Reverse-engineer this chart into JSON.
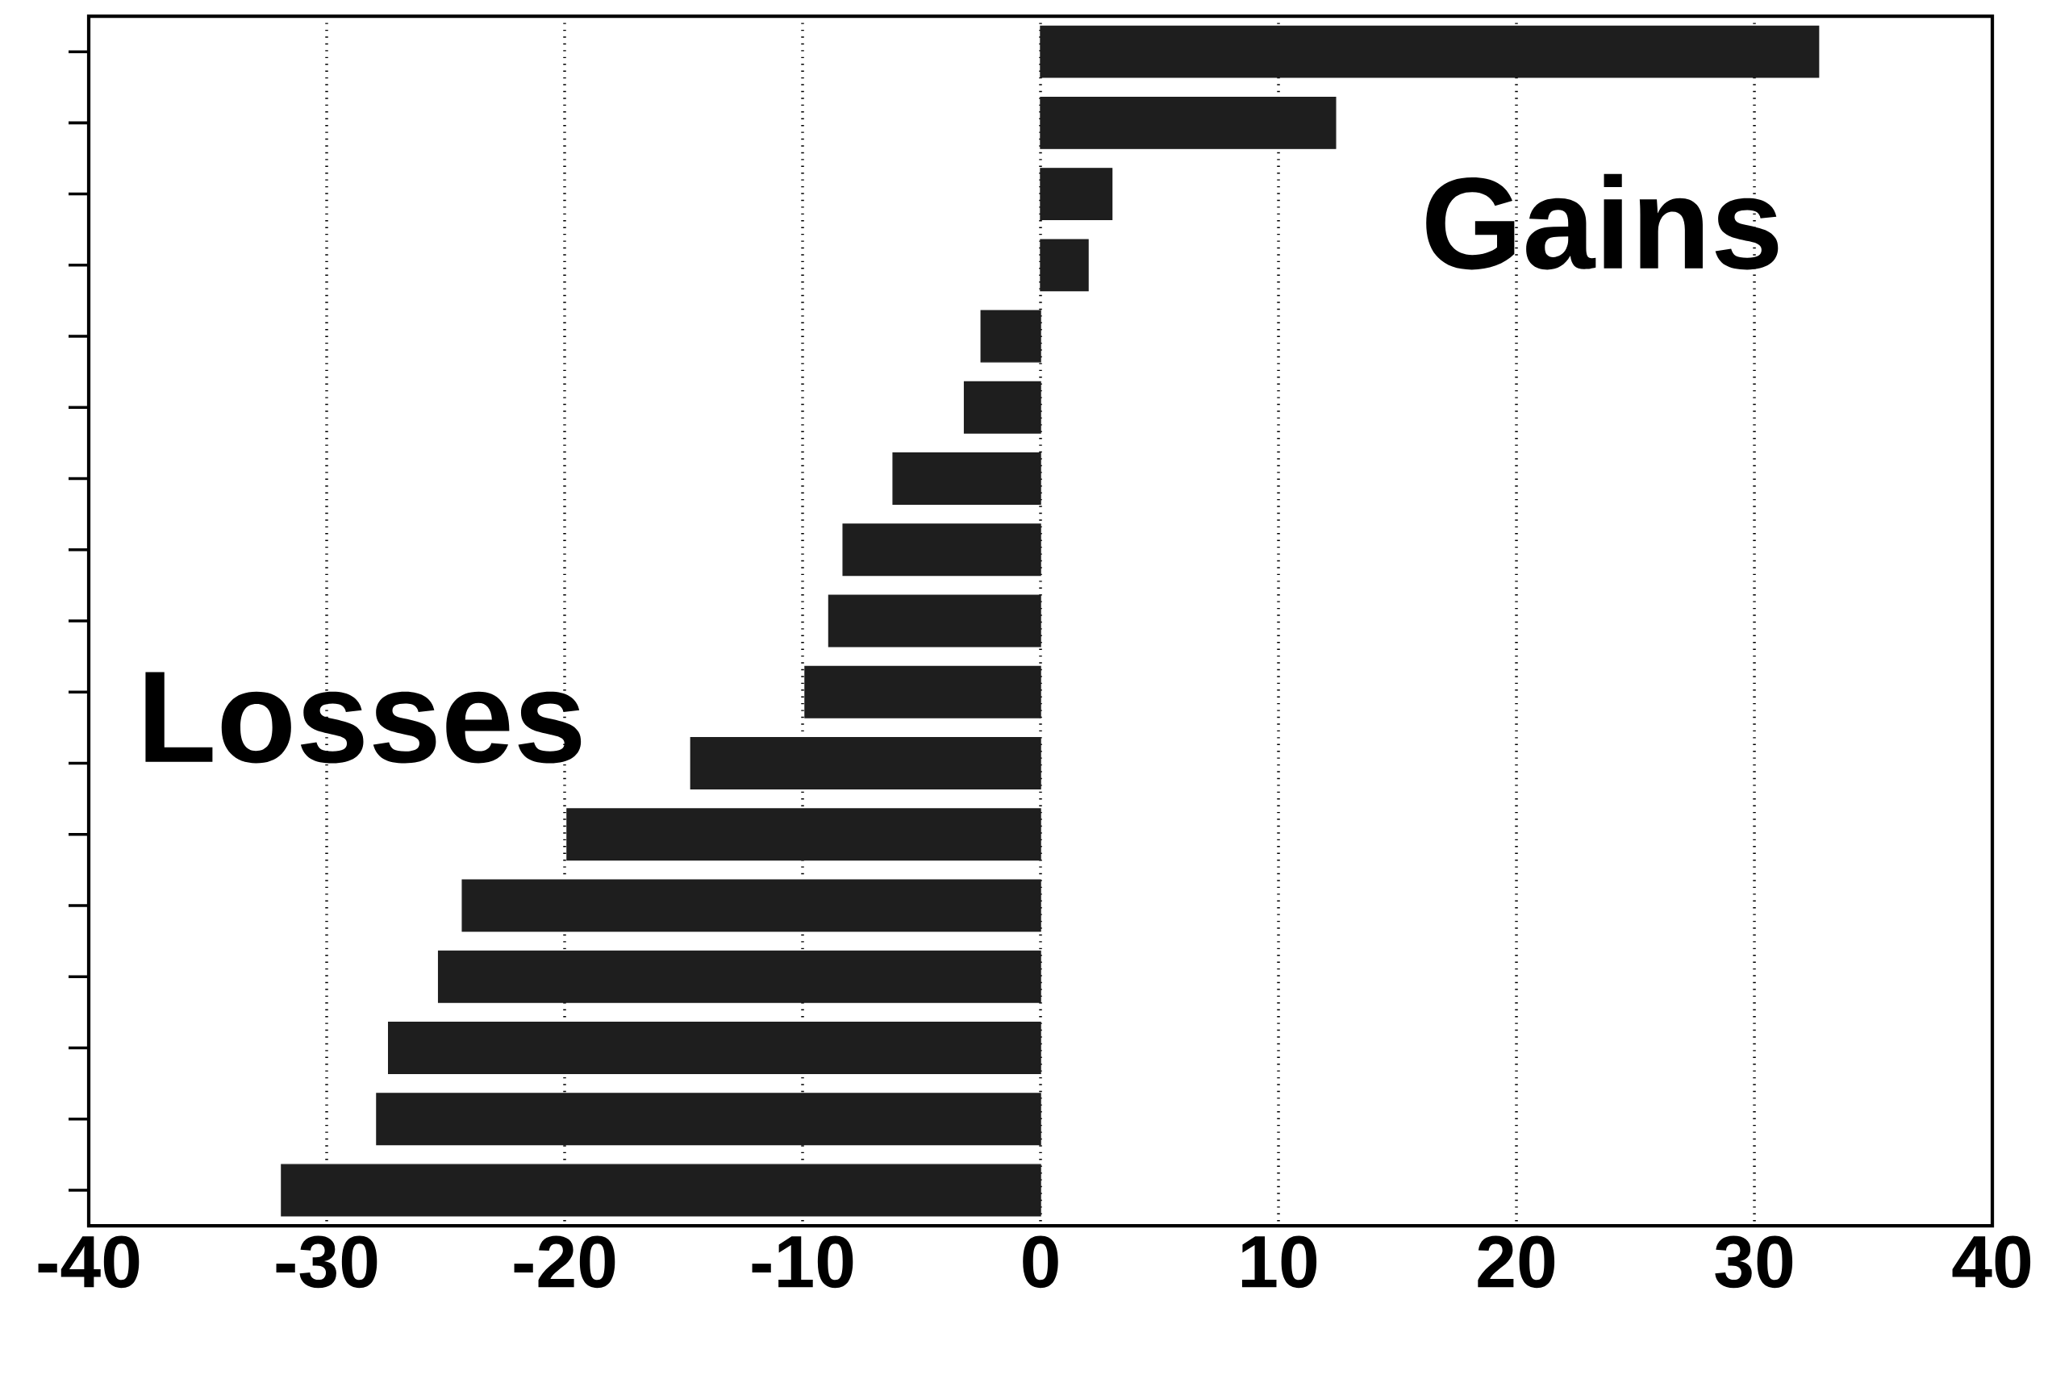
{
  "chart_data": {
    "type": "bar",
    "orientation": "horizontal",
    "categories": [
      null,
      null,
      null,
      null,
      null,
      null,
      null,
      null,
      null,
      null,
      null,
      null,
      null,
      null,
      null,
      null,
      null
    ],
    "values": [
      32.7,
      12.4,
      3.0,
      2.0,
      -2.5,
      -3.2,
      -6.2,
      -8.3,
      -8.9,
      -9.9,
      -14.7,
      -19.9,
      -24.3,
      -25.3,
      -27.4,
      -27.9,
      -31.9
    ],
    "color": "#1e1e1e",
    "xlim": [
      -40,
      40
    ],
    "xticks": [
      -40,
      -30,
      -20,
      -10,
      0,
      10,
      20,
      30,
      40
    ],
    "grid": "x",
    "tick_labels": "x",
    "annotations": [
      "Gains",
      "Losses"
    ]
  }
}
